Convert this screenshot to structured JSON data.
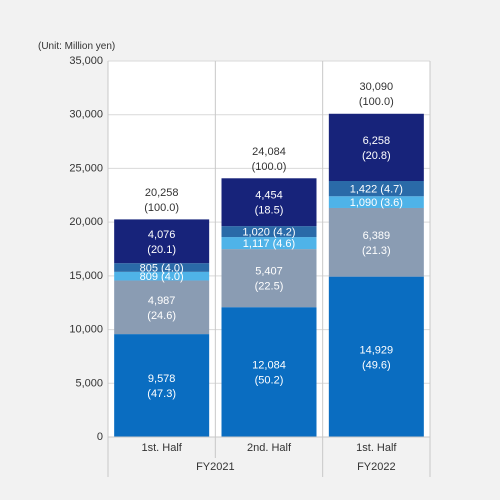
{
  "unit_label": "(Unit: Million yen)",
  "chart_data": {
    "type": "bar",
    "stacked": true,
    "categories": [
      "1st. Half",
      "2nd. Half",
      "1st. Half"
    ],
    "groups": [
      {
        "label": "FY2021",
        "categories": [
          0,
          1
        ]
      },
      {
        "label": "FY2022",
        "categories": [
          2
        ]
      }
    ],
    "ylim": [
      0,
      35000
    ],
    "yticks": [
      0,
      5000,
      10000,
      15000,
      20000,
      25000,
      30000,
      35000
    ],
    "ytick_labels": [
      "0",
      "5,000",
      "10,000",
      "15,000",
      "20,000",
      "25,000",
      "30,000",
      "35,000"
    ],
    "series": [
      {
        "color": "#0a6dc1",
        "values": [
          9578,
          12084,
          14929
        ],
        "labels": [
          "9,578\n(47.3)",
          "12,084\n(50.2)",
          "14,929\n(49.6)"
        ]
      },
      {
        "color": "#8a9cb3",
        "values": [
          4987,
          5407,
          6389
        ],
        "labels": [
          "4,987\n(24.6)",
          "5,407\n(22.5)",
          "6,389\n(21.3)"
        ]
      },
      {
        "color": "#4fb3e8",
        "values": [
          809,
          1117,
          1090
        ],
        "labels": [
          "809 (4.0)",
          "1,117 (4.6)",
          "1,090 (3.6)"
        ]
      },
      {
        "color": "#2a6aa8",
        "values": [
          805,
          1020,
          1422
        ],
        "labels": [
          "805 (4.0)",
          "1,020 (4.2)",
          "1,422 (4.7)"
        ]
      },
      {
        "color": "#17237a",
        "values": [
          4076,
          4454,
          6258
        ],
        "labels": [
          "4,076\n(20.1)",
          "4,454\n(18.5)",
          "6,258\n(20.8)"
        ]
      }
    ],
    "totals": [
      {
        "value": 20258,
        "label": "20,258\n(100.0)"
      },
      {
        "value": 24084,
        "label": "24,084\n(100.0)"
      },
      {
        "value": 30090,
        "label": "30,090\n(100.0)"
      }
    ]
  }
}
